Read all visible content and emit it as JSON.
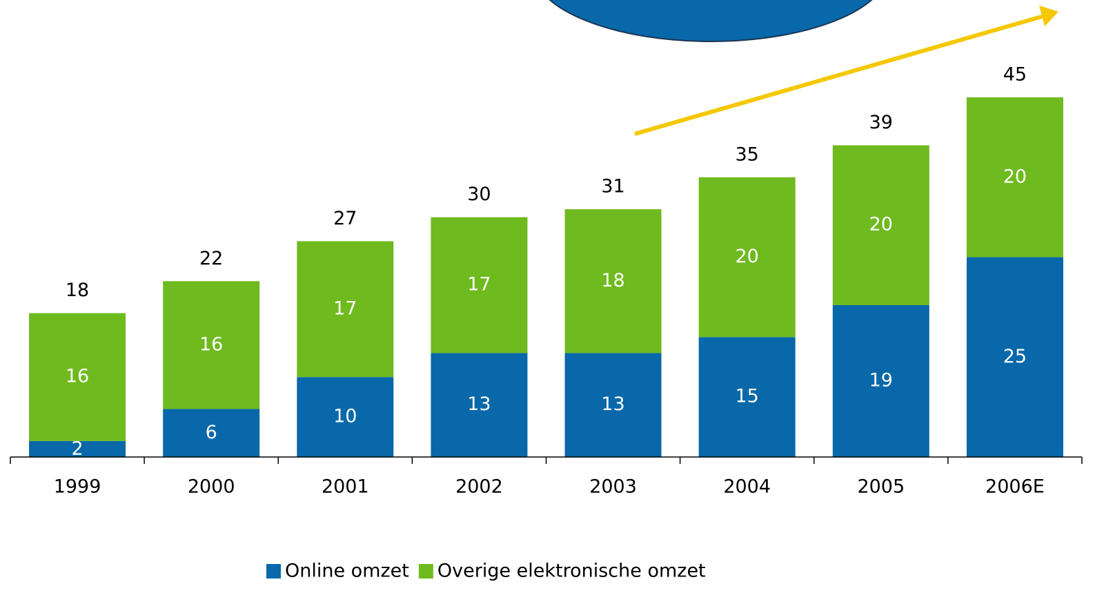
{
  "chart_data": {
    "type": "bar",
    "stacked": true,
    "categories": [
      "1999",
      "2000",
      "2001",
      "2002",
      "2003",
      "2004",
      "2005",
      "2006E"
    ],
    "series": [
      {
        "name": "Online omzet",
        "color": "#0868aa",
        "values": [
          2,
          6,
          10,
          13,
          13,
          15,
          19,
          25
        ]
      },
      {
        "name": "Overige elektronische omzet",
        "color": "#6fba1f",
        "values": [
          16,
          16,
          17,
          17,
          18,
          20,
          20,
          20
        ]
      }
    ],
    "totals": [
      18,
      22,
      27,
      30,
      31,
      35,
      39,
      45
    ]
  }
}
